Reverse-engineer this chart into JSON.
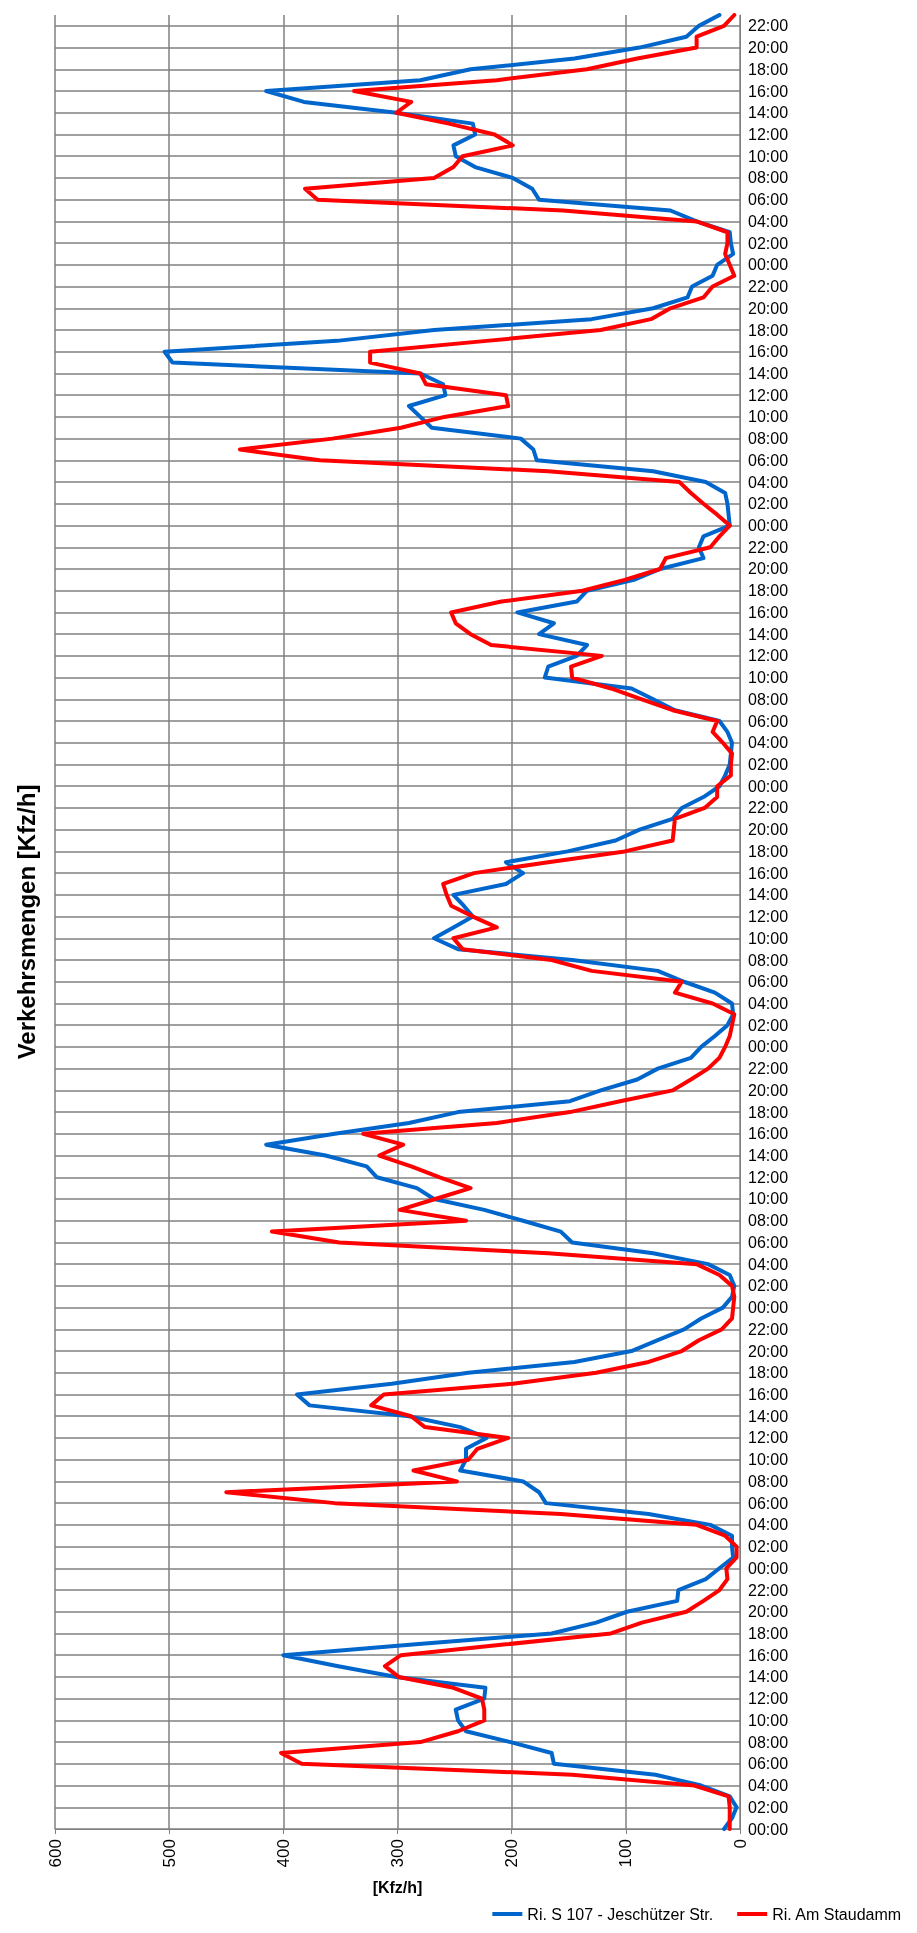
{
  "chart_data": {
    "type": "line",
    "orientation": "horizontal",
    "title": "Verkehrsmengen [Kfz/h]",
    "xlabel": "[Kfz/h]",
    "categories": [
      null,
      "22:00",
      null,
      "20:00",
      null,
      "18:00",
      null,
      "16:00",
      null,
      "14:00",
      null,
      "12:00",
      null,
      "10:00",
      null,
      "08:00",
      null,
      "06:00",
      null,
      "04:00",
      null,
      "02:00",
      null,
      "00:00",
      null,
      "22:00",
      null,
      "20:00",
      null,
      "18:00",
      null,
      "16:00",
      null,
      "14:00",
      null,
      "12:00",
      null,
      "10:00",
      null,
      "08:00",
      null,
      "06:00",
      null,
      "04:00",
      null,
      "02:00",
      null,
      "00:00",
      null,
      "22:00",
      null,
      "20:00",
      null,
      "18:00",
      null,
      "16:00",
      null,
      "14:00",
      null,
      "12:00",
      null,
      "10:00",
      null,
      "08:00",
      null,
      "06:00",
      null,
      "04:00",
      null,
      "02:00",
      null,
      "00:00",
      null,
      "22:00",
      null,
      "20:00",
      null,
      "18:00",
      null,
      "16:00",
      null,
      "14:00",
      null,
      "12:00",
      null,
      "10:00",
      null,
      "08:00",
      null,
      "06:00",
      null,
      "04:00",
      null,
      "02:00",
      null,
      "00:00",
      null,
      "22:00",
      null,
      "20:00",
      null,
      "18:00",
      null,
      "16:00",
      null,
      "14:00",
      null,
      "12:00",
      null,
      "10:00",
      null,
      "08:00",
      null,
      "06:00",
      null,
      "04:00",
      null,
      "02:00",
      null,
      "00:00",
      null,
      "22:00",
      null,
      "20:00",
      null,
      "18:00",
      null,
      "16:00",
      null,
      "14:00",
      null,
      "12:00",
      null,
      "10:00",
      null,
      "08:00",
      null,
      "06:00",
      null,
      "04:00",
      null,
      "02:00",
      null,
      "00:00",
      null,
      "22:00",
      null,
      "20:00",
      null,
      "18:00",
      null,
      "16:00",
      null,
      "14:00",
      null,
      "12:00",
      null,
      "10:00",
      null,
      "08:00",
      null,
      "06:00",
      null,
      "04:00",
      null,
      "02:00",
      null,
      "00:00"
    ],
    "series": [
      {
        "name": "Ri. S 107 - Jeschützer Str.",
        "color": "#0066cc",
        "values": [
          18,
          36,
          47,
          88,
          145,
          236,
          280,
          415,
          382,
          301,
          234,
          232,
          251,
          249,
          232,
          199,
          182,
          176,
          61,
          38,
          9,
          8,
          6,
          20,
          24,
          42,
          46,
          76,
          130,
          268,
          353,
          504,
          497,
          280,
          260,
          258,
          290,
          280,
          270,
          192,
          181,
          178,
          76,
          30,
          13,
          11,
          10,
          9,
          32,
          36,
          32,
          70,
          93,
          134,
          143,
          195,
          163,
          176,
          134,
          143,
          168,
          171,
          95,
          76,
          57,
          18,
          11,
          7,
          8,
          9,
          13,
          18,
          32,
          51,
          59,
          88,
          109,
          151,
          205,
          190,
          205,
          251,
          242,
          234,
          251,
          268,
          247,
          147,
          72,
          49,
          22,
          7,
          6,
          11,
          22,
          34,
          43,
          72,
          90,
          122,
          149,
          247,
          290,
          355,
          415,
          363,
          327,
          318,
          283,
          268,
          224,
          190,
          157,
          147,
          76,
          28,
          9,
          5,
          7,
          15,
          34,
          49,
          72,
          95,
          145,
          238,
          305,
          388,
          377,
          290,
          245,
          222,
          240,
          240,
          245,
          190,
          176,
          170,
          80,
          26,
          7,
          7,
          6,
          18,
          30,
          54,
          55,
          99,
          126,
          165,
          284,
          400,
          353,
          301,
          223,
          224,
          249,
          247,
          240,
          201,
          165,
          163,
          74,
          34,
          9,
          3,
          7,
          14
        ]
      },
      {
        "name": "Ri. Am Staudamm",
        "color": "#ff0000",
        "values": [
          5,
          14,
          38,
          38,
          90,
          134,
          213,
          338,
          288,
          301,
          255,
          215,
          199,
          243,
          251,
          268,
          381,
          370,
          155,
          38,
          11,
          11,
          13,
          9,
          5,
          24,
          32,
          61,
          78,
          122,
          222,
          324,
          324,
          280,
          275,
          205,
          203,
          259,
          297,
          357,
          438,
          368,
          168,
          53,
          43,
          32,
          20,
          9,
          18,
          26,
          65,
          70,
          101,
          138,
          209,
          253,
          249,
          236,
          218,
          121,
          148,
          147,
          113,
          86,
          59,
          20,
          24,
          15,
          7,
          8,
          8,
          20,
          20,
          31,
          57,
          58,
          59,
          101,
          168,
          233,
          260,
          257,
          253,
          234,
          213,
          251,
          243,
          165,
          130,
          51,
          57,
          24,
          5,
          7,
          9,
          13,
          18,
          28,
          43,
          59,
          105,
          149,
          213,
          330,
          295,
          316,
          288,
          263,
          236,
          267,
          298,
          240,
          410,
          351,
          168,
          38,
          18,
          7,
          5,
          6,
          7,
          16,
          36,
          51,
          80,
          126,
          199,
          312,
          323,
          288,
          276,
          203,
          230,
          238,
          286,
          248,
          450,
          355,
          157,
          38,
          13,
          3,
          3,
          12,
          11,
          18,
          32,
          47,
          86,
          113,
          205,
          297,
          311,
          299,
          251,
          226,
          224,
          224,
          247,
          280,
          402,
          384,
          147,
          40,
          10,
          9,
          9,
          9
        ]
      }
    ],
    "xlim": [
      600,
      0
    ],
    "xticks": [
      0,
      100,
      200,
      300,
      400,
      500,
      600
    ],
    "grid": true,
    "legend": "bottom",
    "marker": "none",
    "line_style": "solid"
  }
}
